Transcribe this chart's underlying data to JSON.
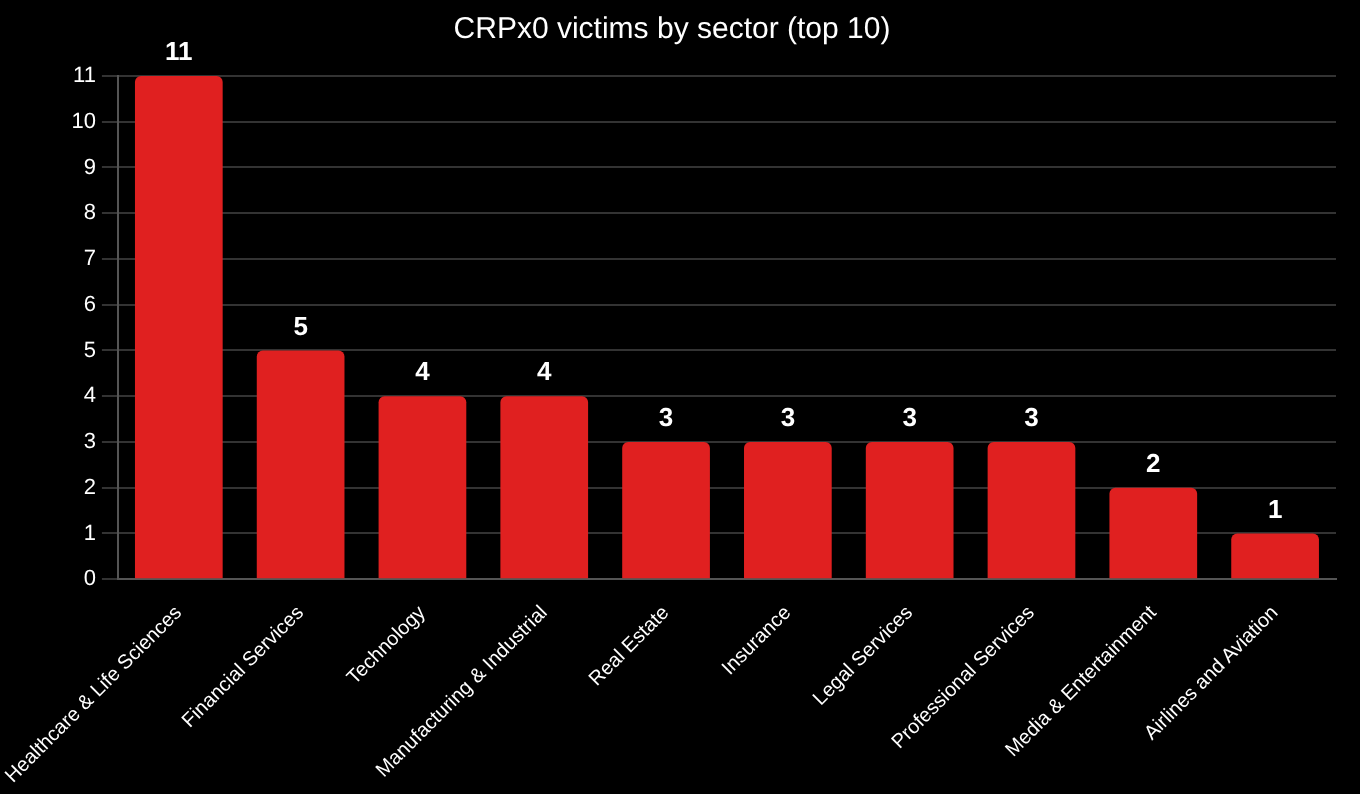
{
  "chart_data": {
    "type": "bar",
    "title": "CRPx0 victims by sector (top 10)",
    "categories": [
      "Healthcare & Life Sciences",
      "Financial Services",
      "Technology",
      "Manufacturing & Industrial",
      "Real Estate",
      "Insurance",
      "Legal Services",
      "Professional Services",
      "Media & Entertainment",
      "Airlines and Aviation"
    ],
    "values": [
      11,
      5,
      4,
      4,
      3,
      3,
      3,
      3,
      2,
      1
    ],
    "color": "#e02020",
    "ylim": [
      0,
      11
    ],
    "yticks": [
      0,
      1,
      2,
      3,
      4,
      5,
      6,
      7,
      8,
      9,
      10,
      11
    ],
    "grid": "y",
    "data_labels": true
  }
}
